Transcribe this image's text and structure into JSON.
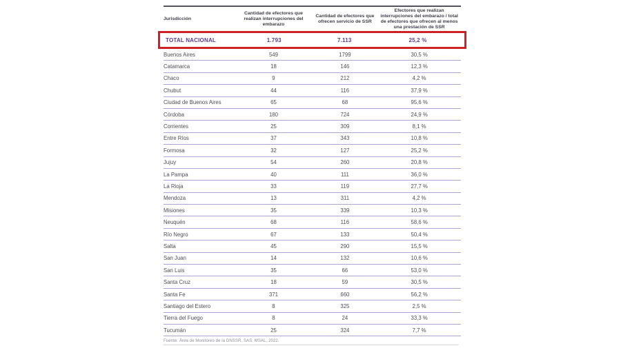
{
  "chart_data": {
    "type": "table",
    "columns": [
      "Jurisdicción",
      "Cantidad de efectores que realizan interrupciones del embarazo",
      "Cantidad de efectores que ofrecen servicio de SSR",
      "Efectores que realizan interrupciones del embarazo / total de efectores que ofrecen al menos una prestación de SSR"
    ],
    "total_row": [
      "TOTAL NACIONAL",
      "1.793",
      "7.113",
      "25,2 %"
    ],
    "rows": [
      [
        "Buenos Aires",
        "549",
        "1799",
        "30,5 %"
      ],
      [
        "Catamarca",
        "18",
        "146",
        "12,3 %"
      ],
      [
        "Chaco",
        "9",
        "212",
        "4,2 %"
      ],
      [
        "Chubut",
        "44",
        "116",
        "37,9 %"
      ],
      [
        "Ciudad de Buenos Aires",
        "65",
        "68",
        "95,6 %"
      ],
      [
        "Córdoba",
        "180",
        "724",
        "24,9 %"
      ],
      [
        "Corrientes",
        "25",
        "309",
        "8,1 %"
      ],
      [
        "Entre Ríos",
        "37",
        "343",
        "10,8 %"
      ],
      [
        "Formosa",
        "32",
        "127",
        "25,2 %"
      ],
      [
        "Jujuy",
        "54",
        "260",
        "20,8 %"
      ],
      [
        "La Pampa",
        "40",
        "111",
        "36,0 %"
      ],
      [
        "La Rioja",
        "33",
        "119",
        "27,7 %"
      ],
      [
        "Mendoza",
        "13",
        "311",
        "4,2 %"
      ],
      [
        "Misiones",
        "35",
        "339",
        "10,3 %"
      ],
      [
        "Neuquén",
        "68",
        "116",
        "58,6 %"
      ],
      [
        "Río Negro",
        "67",
        "133",
        "50,4 %"
      ],
      [
        "Salta",
        "45",
        "290",
        "15,5 %"
      ],
      [
        "San Juan",
        "14",
        "132",
        "10,6 %"
      ],
      [
        "San Luis",
        "35",
        "66",
        "53,0 %"
      ],
      [
        "Santa Cruz",
        "18",
        "59",
        "30,5 %"
      ],
      [
        "Santa Fe",
        "371",
        "660",
        "56,2 %"
      ],
      [
        "Santiago del Estero",
        "8",
        "325",
        "2,5 %"
      ],
      [
        "Tierra del Fuego",
        "8",
        "24",
        "33,3 %"
      ],
      [
        "Tucumán",
        "25",
        "324",
        "7,7 %"
      ]
    ],
    "source": "Fuente: Área de Monitoreo de la DNSSR, SAS, MSAL, 2022."
  },
  "colors": {
    "highlight_border": "#cd2127",
    "total_text": "#5b3d8e",
    "row_divider": "#aca4d4",
    "header_rule": "#55525c"
  }
}
